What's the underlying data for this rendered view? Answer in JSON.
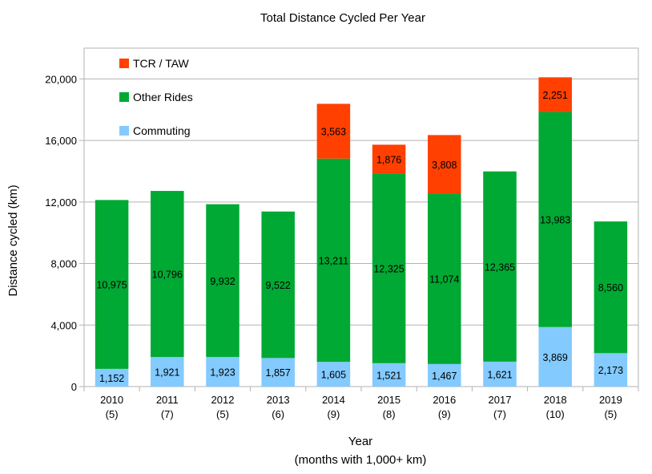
{
  "chart_data": {
    "type": "bar",
    "stacked": true,
    "title": "Total Distance Cycled Per Year",
    "xlabel": "Year",
    "xlabel_sub": "(months with 1,000+ km)",
    "ylabel": "Distance cycled (km)",
    "ylim": [
      0,
      22000
    ],
    "yticks": [
      0,
      4000,
      8000,
      12000,
      16000,
      20000
    ],
    "ytick_labels": [
      "0",
      "4,000",
      "8,000",
      "12,000",
      "16,000",
      "20,000"
    ],
    "grid": true,
    "legend_position": "top-left",
    "categories": [
      "2010",
      "2011",
      "2012",
      "2013",
      "2014",
      "2015",
      "2016",
      "2017",
      "2018",
      "2019"
    ],
    "category_sublabels": [
      "(5)",
      "(7)",
      "(5)",
      "(6)",
      "(9)",
      "(8)",
      "(9)",
      "(7)",
      "(10)",
      "(5)"
    ],
    "series": [
      {
        "name": "Commuting",
        "color": "#83caff",
        "values": [
          1152,
          1921,
          1923,
          1857,
          1605,
          1521,
          1467,
          1621,
          3869,
          2173
        ],
        "labels": [
          "1,152",
          "1,921",
          "1,923",
          "1,857",
          "1,605",
          "1,521",
          "1,467",
          "1,621",
          "3,869",
          "2,173"
        ]
      },
      {
        "name": "Other Rides",
        "color": "#00a933",
        "values": [
          10975,
          10796,
          9932,
          9522,
          13211,
          12325,
          11074,
          12365,
          13983,
          8560
        ],
        "labels": [
          "10,975",
          "10,796",
          "9,932",
          "9,522",
          "13,211",
          "12,325",
          "11,074",
          "12,365",
          "13,983",
          "8,560"
        ]
      },
      {
        "name": "TCR / TAW",
        "color": "#ff4000",
        "values": [
          0,
          0,
          0,
          0,
          3563,
          1876,
          3808,
          0,
          2251,
          0
        ],
        "labels": [
          "",
          "",
          "",
          "",
          "3,563",
          "1,876",
          "3,808",
          "",
          "2,251",
          ""
        ]
      }
    ]
  }
}
